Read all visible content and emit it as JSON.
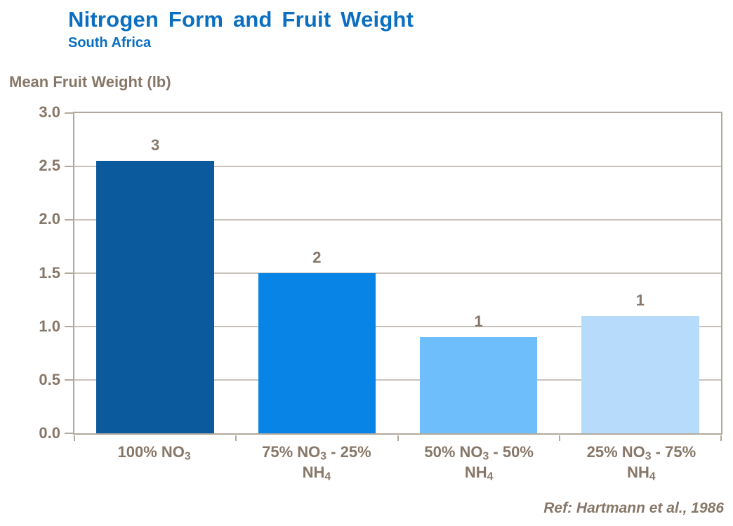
{
  "header": {
    "title": "Nitrogen Form and Fruit Weight",
    "subtitle": "South Africa"
  },
  "footer": {
    "reference": "Ref: Hartmann et al., 1986"
  },
  "chart_data": {
    "type": "bar",
    "title": "Nitrogen Form and Fruit Weight",
    "subtitle": "South Africa",
    "xlabel": "",
    "ylabel": "Mean Fruit Weight (lb)",
    "categories": [
      "100% NO₃",
      "75% NO₃ - 25% NH₄",
      "50% NO₃ - 50% NH₄",
      "25% NO₃ - 75% NH₄"
    ],
    "x_tick_lines": [
      [
        "100% NO₃"
      ],
      [
        "75% NO₃ - 25%",
        "NH₄"
      ],
      [
        "50% NO₃ - 50%",
        "NH₄"
      ],
      [
        "25% NO₃ - 75%",
        "NH₄"
      ]
    ],
    "values": [
      2.55,
      1.5,
      0.9,
      1.1
    ],
    "data_labels": [
      "3",
      "2",
      "1",
      "1"
    ],
    "ylim": [
      0,
      3.0
    ],
    "ytick_step": 0.5,
    "yticks": [
      "3.0",
      "2.5",
      "2.0",
      "1.5",
      "1.0",
      "0.5",
      "0.0"
    ],
    "grid": true,
    "legend": false,
    "bar_colors": [
      "#0B5A9D",
      "#0884E6",
      "#6DBEFA",
      "#B7DCFB"
    ],
    "colors": {
      "title": "#0B6FC1",
      "text": "#877768",
      "axis_border": "#B2A99E",
      "gridline": "#C8C2BA",
      "background": "#FFFFFF"
    }
  }
}
